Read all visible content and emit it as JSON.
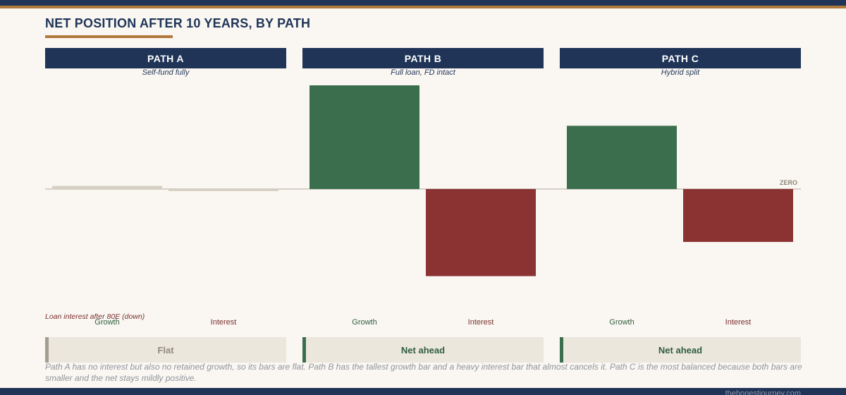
{
  "page": {
    "title": "NET POSITION AFTER 10 YEARS, BY PATH",
    "footnote": "Path A has no interest but also no retained growth, so its bars are flat. Path B has the tallest growth bar and a heavy interest bar that almost cancels it. Path C is the most balanced because both bars are smaller and the net stays mildly positive.",
    "footer_url": "thehonestjourney.com",
    "note_label": "Loan interest after 80E (down)"
  },
  "colors": {
    "navy": "#1f3457",
    "gold": "#b07a3c",
    "growth": "#3b6e4c",
    "interest": "#8b3232",
    "flat": "#d6d0c4",
    "zero_line": "#c9c4ba"
  },
  "chart_data": {
    "type": "bar",
    "title": "NET POSITION AFTER 10 YEARS, BY PATH",
    "zero_label": "ZERO",
    "ylim": [
      -100,
      100
    ],
    "grid": false,
    "panels": [
      {
        "name": "PATH A",
        "subtitle": "Self-fund fully",
        "categories": [
          "Growth",
          "Interest"
        ],
        "values": [
          3,
          -2
        ],
        "verdict": "Flat",
        "verdict_tone": "neutral"
      },
      {
        "name": "PATH B",
        "subtitle": "Full loan, FD intact",
        "categories": [
          "Growth",
          "Interest"
        ],
        "values": [
          100,
          -84
        ],
        "verdict": "Net ahead",
        "verdict_tone": "positive"
      },
      {
        "name": "PATH C",
        "subtitle": "Hybrid split",
        "categories": [
          "Growth",
          "Interest"
        ],
        "values": [
          61,
          -51
        ],
        "verdict": "Net ahead",
        "verdict_tone": "positive"
      }
    ]
  }
}
